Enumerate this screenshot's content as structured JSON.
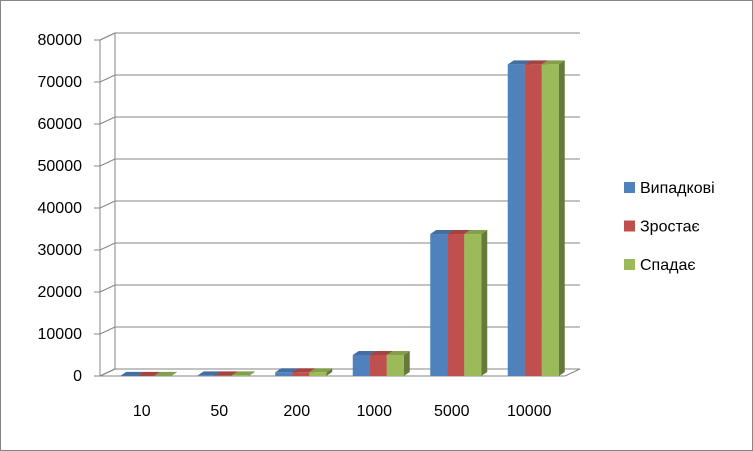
{
  "chart_data": {
    "type": "bar3d",
    "categories": [
      "10",
      "50",
      "200",
      "1000",
      "5000",
      "10000"
    ],
    "series": [
      {
        "name": "Випадкові",
        "color": "#4f81bd",
        "values": [
          20,
          150,
          900,
          5000,
          33800,
          74200
        ]
      },
      {
        "name": "Зростає",
        "color": "#c0504d",
        "values": [
          20,
          150,
          900,
          5000,
          33800,
          74200
        ]
      },
      {
        "name": "Спадає",
        "color": "#9bbb59",
        "values": [
          20,
          150,
          900,
          5000,
          33800,
          74200
        ]
      }
    ],
    "ylim": [
      0,
      80000
    ],
    "yticks": [
      0,
      10000,
      20000,
      30000,
      40000,
      50000,
      60000,
      70000,
      80000
    ],
    "grid": true,
    "legend": "right"
  }
}
